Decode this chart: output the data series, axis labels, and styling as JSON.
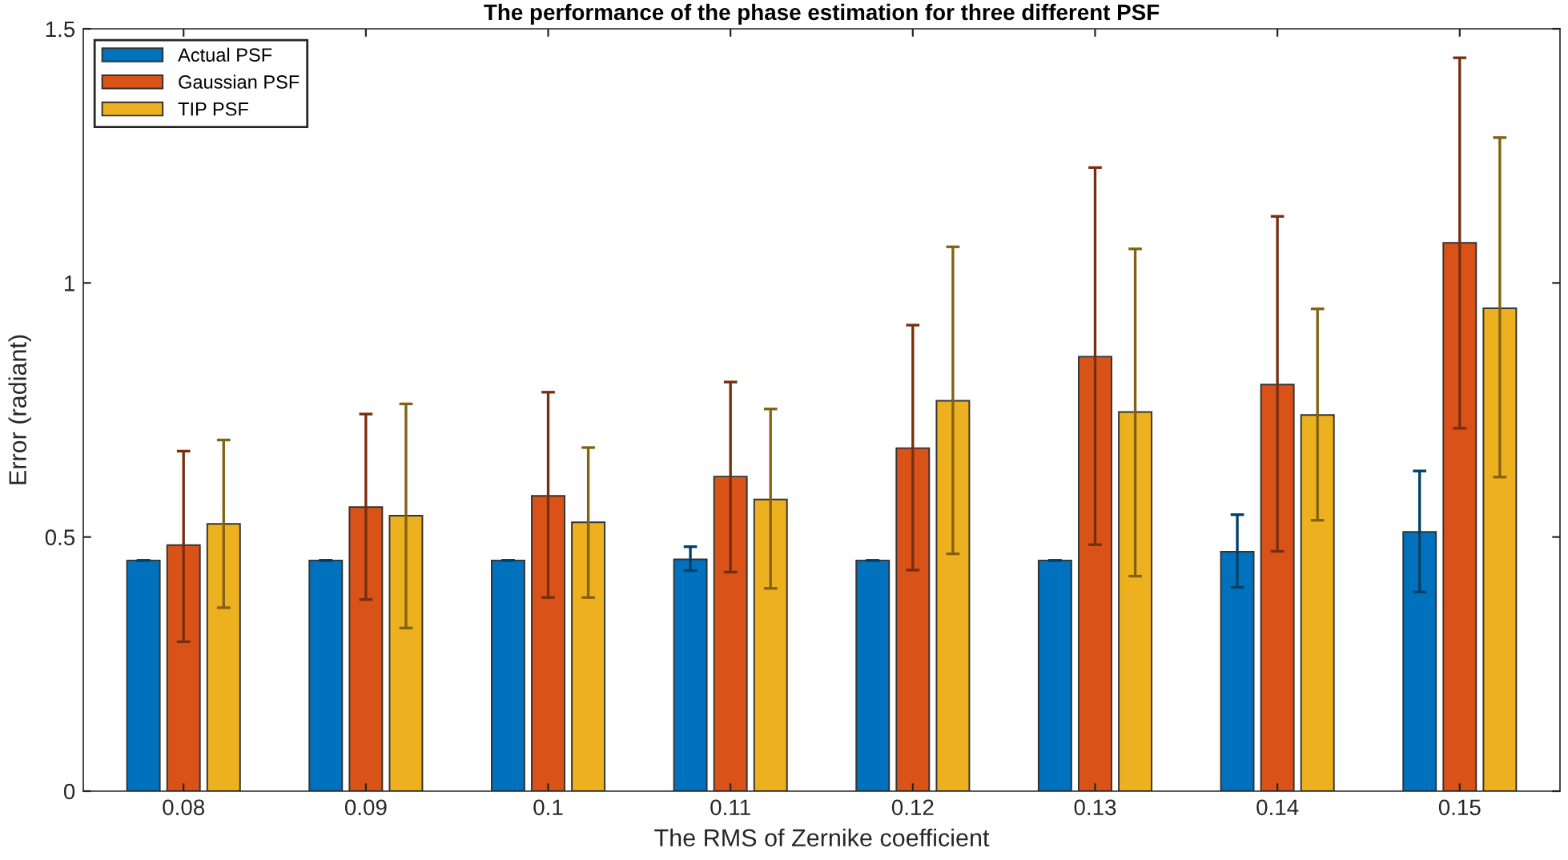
{
  "chart_data": {
    "type": "bar",
    "title": "The performance of the phase estimation for three different PSF",
    "xlabel": "The RMS of Zernike coefficient",
    "ylabel": "Error (radiant)",
    "categories": [
      "0.08",
      "0.09",
      "0.1",
      "0.11",
      "0.12",
      "0.13",
      "0.14",
      "0.15"
    ],
    "series": [
      {
        "name": "Actual PSF",
        "color": "#0072bd",
        "values": [
          0.454,
          0.454,
          0.454,
          0.456,
          0.454,
          0.454,
          0.471,
          0.51
        ],
        "errors": [
          0,
          0,
          0,
          [
            0.434,
            0.481
          ],
          0,
          0,
          [
            0.401,
            0.544
          ],
          [
            0.392,
            0.63
          ]
        ]
      },
      {
        "name": "Gaussian PSF",
        "color": "#d95319",
        "values": [
          0.484,
          0.559,
          0.581,
          0.619,
          0.675,
          0.855,
          0.8,
          1.079
        ],
        "errors": [
          [
            0.294,
            0.669
          ],
          [
            0.377,
            0.742
          ],
          [
            0.381,
            0.785
          ],
          [
            0.431,
            0.805
          ],
          [
            0.435,
            0.917
          ],
          [
            0.485,
            1.227
          ],
          [
            0.472,
            1.131
          ],
          [
            0.714,
            1.443
          ]
        ]
      },
      {
        "name": "TIP PSF",
        "color": "#edb120",
        "values": [
          0.526,
          0.542,
          0.529,
          0.574,
          0.768,
          0.746,
          0.74,
          0.95
        ],
        "errors": [
          [
            0.361,
            0.691
          ],
          [
            0.321,
            0.762
          ],
          [
            0.381,
            0.676
          ],
          [
            0.399,
            0.752
          ],
          [
            0.467,
            1.071
          ],
          [
            0.423,
            1.067
          ],
          [
            0.533,
            0.949
          ],
          [
            0.618,
            1.286
          ]
        ]
      }
    ],
    "ylim": [
      0,
      1.5
    ],
    "yticks": [
      0,
      0.5,
      1,
      1.5
    ],
    "legend": "top left",
    "grid": false
  }
}
